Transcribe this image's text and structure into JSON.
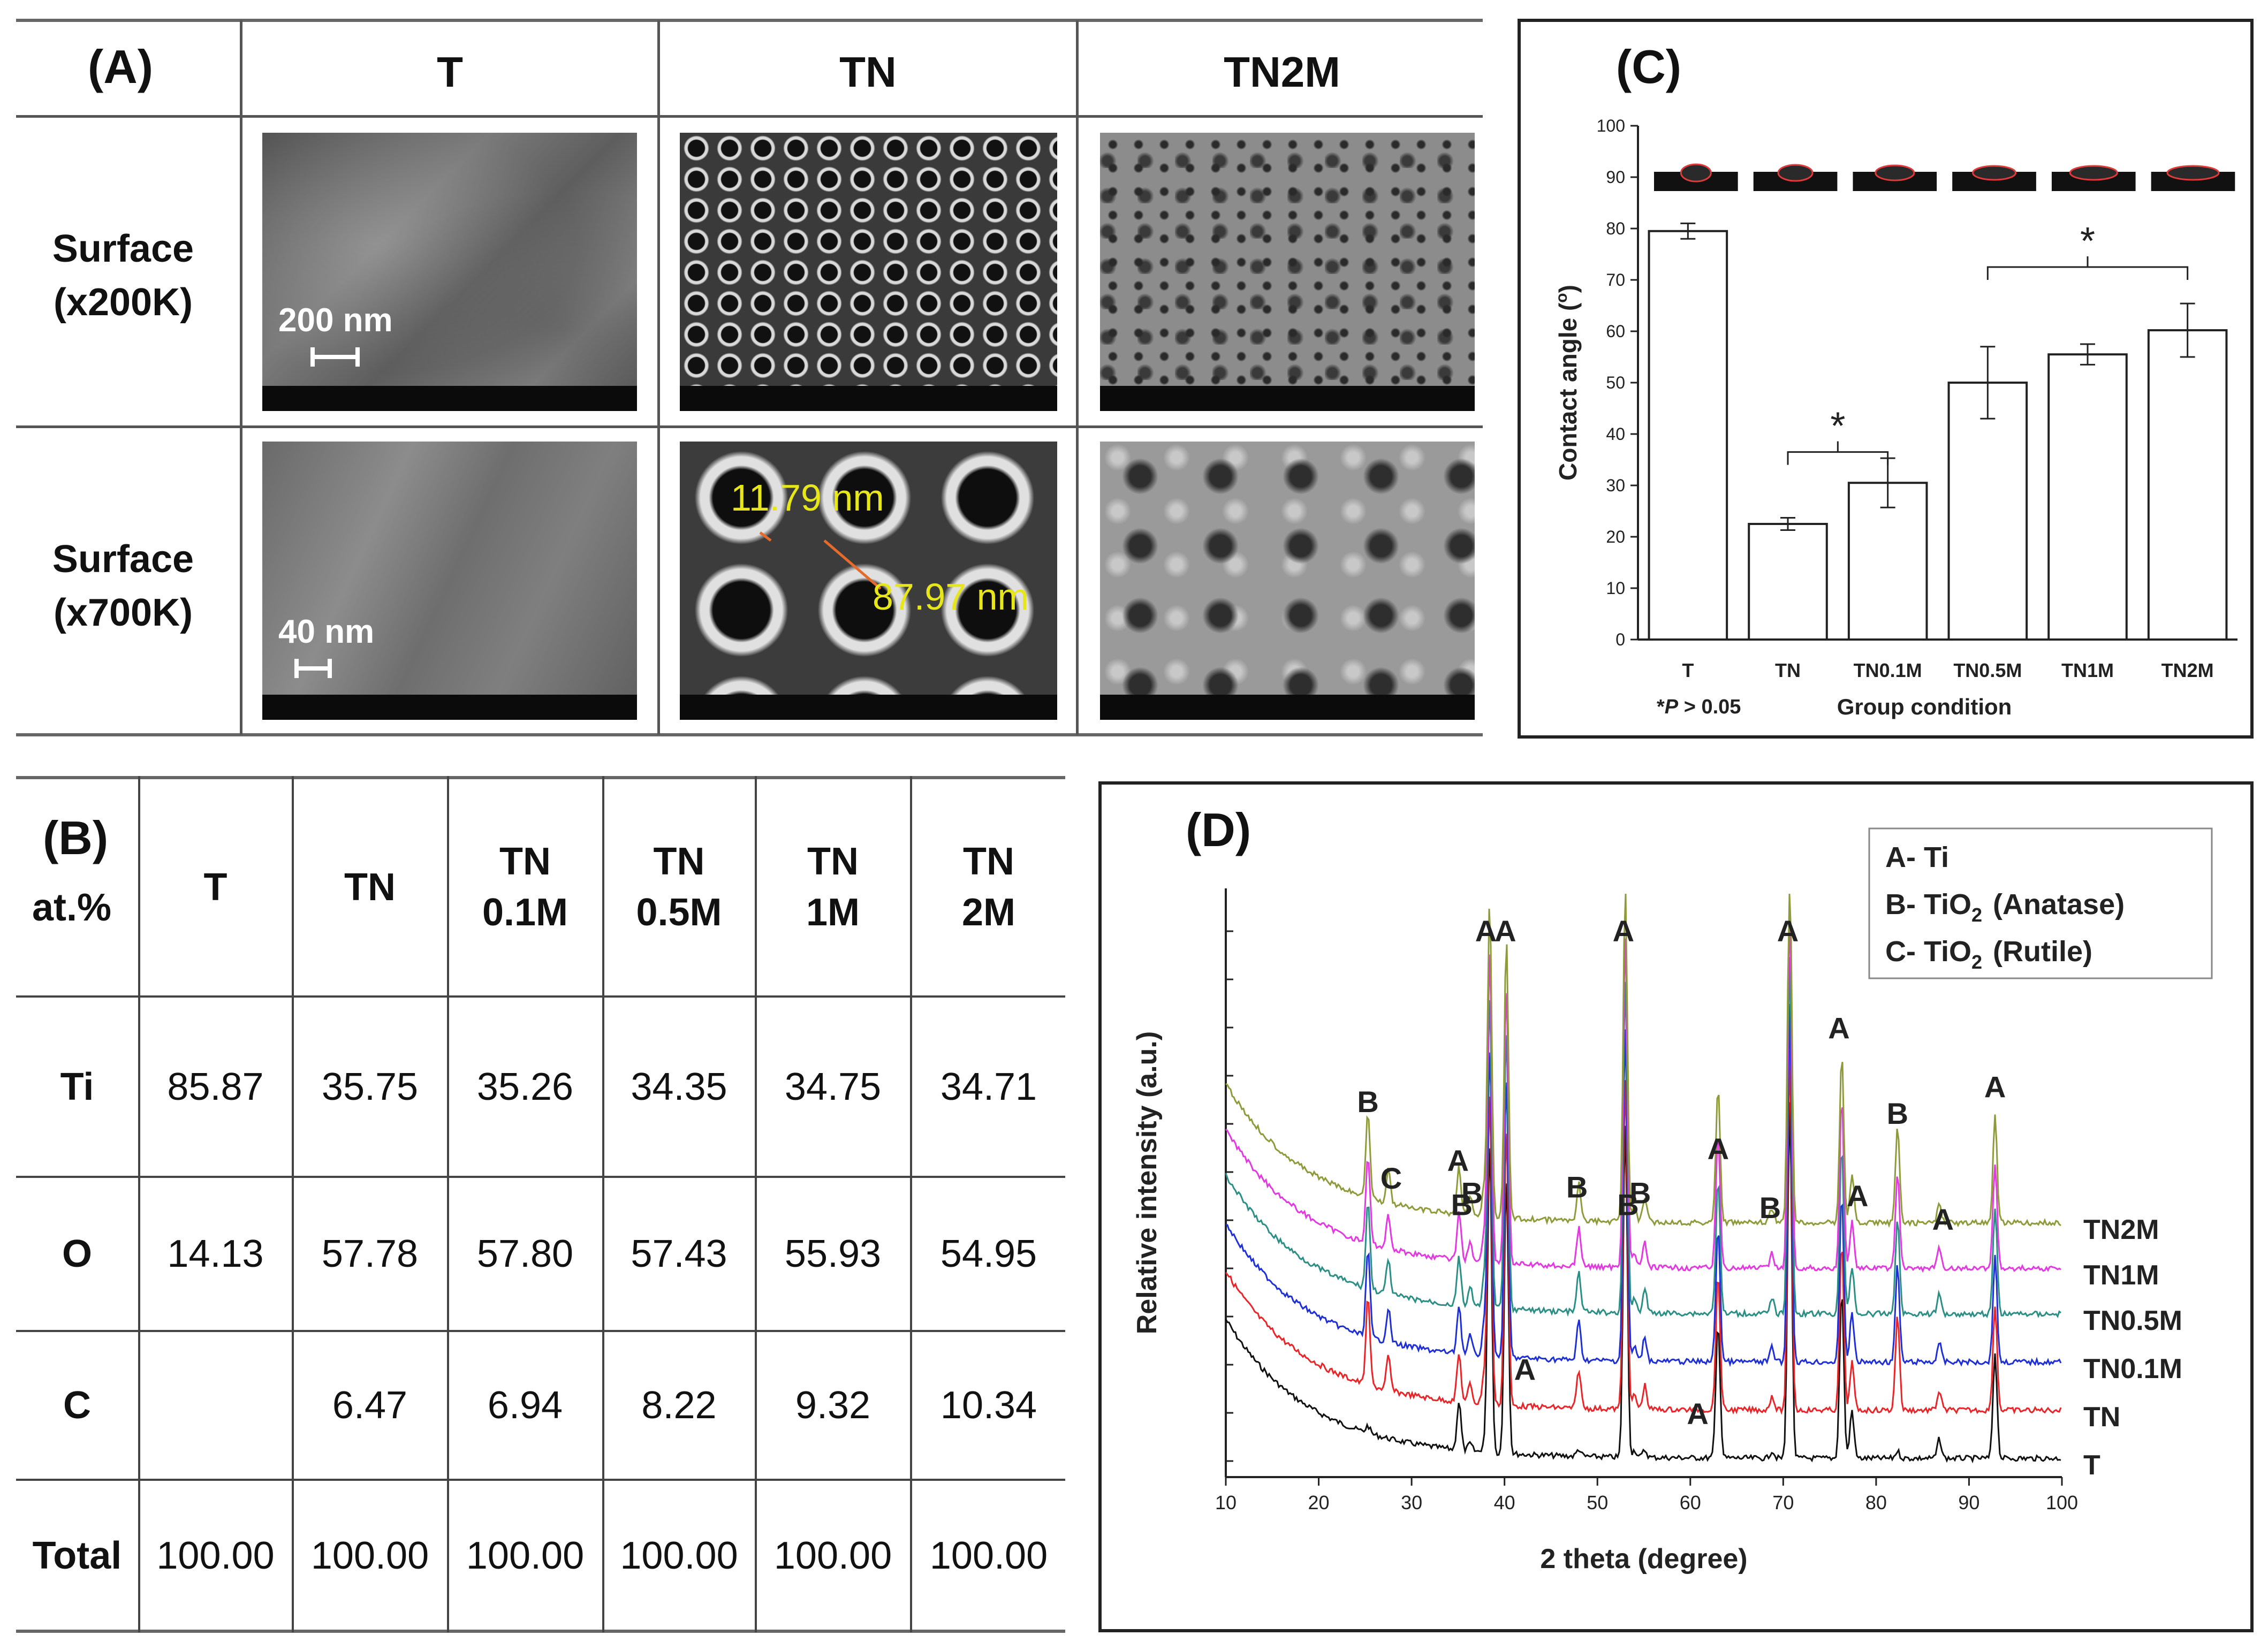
{
  "panel_a": {
    "label": "(A)",
    "col_headers": [
      "T",
      "TN",
      "TN2M"
    ],
    "row_labels": [
      {
        "line1": "Surface",
        "line2": "(x200K)"
      },
      {
        "line1": "Surface",
        "line2": "(x700K)"
      }
    ],
    "scalebars": {
      "t_200k": "200 nm",
      "t_700k": "40 nm"
    },
    "measurements": [
      "11.79 nm",
      "87.97 nm"
    ]
  },
  "panel_b": {
    "label": "(B)",
    "sublabel": "at.%",
    "columns": [
      {
        "l1": "T",
        "l2": ""
      },
      {
        "l1": "TN",
        "l2": ""
      },
      {
        "l1": "TN",
        "l2": "0.1M"
      },
      {
        "l1": "TN",
        "l2": "0.5M"
      },
      {
        "l1": "TN",
        "l2": "1M"
      },
      {
        "l1": "TN",
        "l2": "2M"
      }
    ],
    "rows": [
      {
        "name": "Ti",
        "values": [
          "85.87",
          "35.75",
          "35.26",
          "34.35",
          "34.75",
          "34.71"
        ]
      },
      {
        "name": "O",
        "values": [
          "14.13",
          "57.78",
          "57.80",
          "57.43",
          "55.93",
          "54.95"
        ]
      },
      {
        "name": "C",
        "values": [
          "",
          "6.47",
          "6.94",
          "8.22",
          "9.32",
          "10.34"
        ]
      },
      {
        "name": "Total",
        "values": [
          "100.00",
          "100.00",
          "100.00",
          "100.00",
          "100.00",
          "100.00"
        ]
      }
    ]
  },
  "chart_data": [
    {
      "id": "C",
      "label": "(C)",
      "type": "bar",
      "categories": [
        "T",
        "TN",
        "TN0.1M",
        "TN0.5M",
        "TN1M",
        "TN2M"
      ],
      "values": [
        79.5,
        22.5,
        30.5,
        50.0,
        55.5,
        60.2
      ],
      "errors": [
        1.5,
        1.2,
        4.8,
        7.0,
        2.0,
        5.2
      ],
      "ylabel": "Contact angle (°)",
      "ylabel_main": "Contact angle (",
      "ylabel_sup": "o",
      "ylabel_end": ")",
      "xlabel": "Group condition",
      "ylim": [
        0,
        100
      ],
      "yticks": [
        0,
        10,
        20,
        30,
        40,
        50,
        60,
        70,
        80,
        90,
        100
      ],
      "note": "*P > 0.05",
      "note_star": "*",
      "note_p": "P",
      "note_rest": " > 0.05",
      "significance": [
        {
          "from": 1,
          "to": 2,
          "y": 36.5,
          "mark": "*"
        },
        {
          "from": 3,
          "to": 5,
          "y": 72.5,
          "mark": "*"
        }
      ],
      "colors": {
        "bar_fill": "#ffffff",
        "bar_stroke": "#222222"
      }
    },
    {
      "id": "D",
      "label": "(D)",
      "type": "line",
      "xlabel": "2 theta (degree)",
      "ylabel": "Relative intensity (a.u.)",
      "xlim": [
        10,
        100
      ],
      "xticks": [
        10,
        20,
        30,
        40,
        50,
        60,
        70,
        80,
        90,
        100
      ],
      "series": [
        {
          "name": "T",
          "color": "#111111"
        },
        {
          "name": "TN",
          "color": "#e8262a"
        },
        {
          "name": "TN0.1M",
          "color": "#1f2fd6"
        },
        {
          "name": "TN0.5M",
          "color": "#2c8f86"
        },
        {
          "name": "TN1M",
          "color": "#e23ae0"
        },
        {
          "name": "TN2M",
          "color": "#8f9b3a"
        }
      ],
      "peaks": [
        {
          "x": 25.3,
          "phase": "B",
          "h": 1.8
        },
        {
          "x": 27.5,
          "phase": "C",
          "h": 0.7
        },
        {
          "x": 35.1,
          "phase": "A",
          "h": 1.0
        },
        {
          "x": 36.3,
          "phase": "B",
          "h": 0.4
        },
        {
          "x": 37.8,
          "phase": "B",
          "h": 0.6
        },
        {
          "x": 38.4,
          "phase": "A",
          "h": 6.5
        },
        {
          "x": 40.2,
          "phase": "A",
          "h": 5.8
        },
        {
          "x": 48.0,
          "phase": "B",
          "h": 0.8
        },
        {
          "x": 53.0,
          "phase": "A",
          "h": 7.0
        },
        {
          "x": 54.0,
          "phase": "B",
          "h": 0.3
        },
        {
          "x": 55.1,
          "phase": "B",
          "h": 0.5
        },
        {
          "x": 63.0,
          "phase": "A",
          "h": 2.6
        },
        {
          "x": 62.8,
          "phase": "A",
          "h": 0.3
        },
        {
          "x": 68.8,
          "phase": "B",
          "h": 0.3
        },
        {
          "x": 70.7,
          "phase": "A",
          "h": 7.5
        },
        {
          "x": 76.3,
          "phase": "A",
          "h": 3.5
        },
        {
          "x": 77.4,
          "phase": "A",
          "h": 1.0
        },
        {
          "x": 82.3,
          "phase": "B",
          "h": 2.0
        },
        {
          "x": 86.8,
          "phase": "A",
          "h": 0.4
        },
        {
          "x": 92.8,
          "phase": "A",
          "h": 2.2
        }
      ],
      "peak_labels": [
        {
          "text": "B",
          "x": 25.3,
          "level": 0.62
        },
        {
          "text": "C",
          "x": 27.8,
          "level": 0.49
        },
        {
          "text": "A",
          "x": 35.0,
          "level": 0.52
        },
        {
          "text": "B",
          "x": 35.4,
          "level": 0.445
        },
        {
          "text": "B",
          "x": 36.5,
          "level": 0.465
        },
        {
          "text": "A",
          "x": 38.0,
          "level": 0.91
        },
        {
          "text": "A",
          "x": 40.1,
          "level": 0.91
        },
        {
          "text": "A",
          "x": 42.2,
          "level": 0.165
        },
        {
          "text": "B",
          "x": 47.8,
          "level": 0.475
        },
        {
          "text": "B",
          "x": 53.3,
          "level": 0.445
        },
        {
          "text": "B",
          "x": 54.6,
          "level": 0.465
        },
        {
          "text": "A",
          "x": 52.8,
          "level": 0.91
        },
        {
          "text": "A",
          "x": 63.0,
          "level": 0.54
        },
        {
          "text": "A",
          "x": 60.8,
          "level": 0.09
        },
        {
          "text": "B",
          "x": 68.6,
          "level": 0.44
        },
        {
          "text": "A",
          "x": 70.5,
          "level": 0.91
        },
        {
          "text": "A",
          "x": 76.0,
          "level": 0.745
        },
        {
          "text": "A",
          "x": 78.0,
          "level": 0.46
        },
        {
          "text": "B",
          "x": 82.3,
          "level": 0.6
        },
        {
          "text": "A",
          "x": 87.2,
          "level": 0.42
        },
        {
          "text": "A",
          "x": 92.8,
          "level": 0.645
        }
      ],
      "legend": [
        {
          "key": "A- Ti",
          "formula": "",
          "sub": "",
          "phase": ""
        },
        {
          "key": "B- TiO",
          "formula": "",
          "sub": "2",
          "phase": "(Anatase)"
        },
        {
          "key": "C- TiO",
          "formula": "",
          "sub": "2",
          "phase": "(Rutile)"
        }
      ]
    }
  ]
}
